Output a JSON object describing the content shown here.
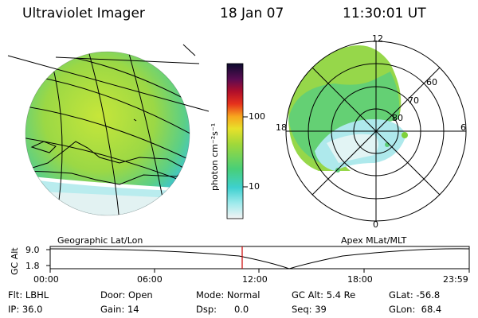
{
  "header": {
    "title": "Ultraviolet Imager",
    "date": "18 Jan 07",
    "time": "11:30:01 UT"
  },
  "colorbar": {
    "unit_label": "photon cm⁻²s⁻¹",
    "ticks": [
      "100",
      "10"
    ]
  },
  "polar_plot": {
    "mlt_labels": {
      "top": "12",
      "left": "18",
      "right": "6",
      "bottom": "0"
    },
    "lat_labels": [
      "60",
      "70",
      "80"
    ]
  },
  "projections": {
    "left": "Geographic Lat/Lon",
    "right": "Apex MLat/MLT"
  },
  "altitude_plot": {
    "axis_label": "GC Alt",
    "y_ticks": [
      "9.0",
      "1.8"
    ],
    "x_ticks": [
      "00:00",
      "06:00",
      "12:00",
      "18:00",
      "23:59"
    ],
    "current_time_marker_color": "#cc0000"
  },
  "info": {
    "filter": "Flt: LBHL",
    "ip": "IP: 36.0",
    "door": "Door: Open",
    "gain": "Gain: 14",
    "mode": "Mode: Normal",
    "dsp": "Dsp:      0.0",
    "gc_alt": "GC Alt: 5.4 Re",
    "seq": "Seq: 39",
    "glat": "GLat: -56.8",
    "glon": "GLon:  68.4"
  }
}
